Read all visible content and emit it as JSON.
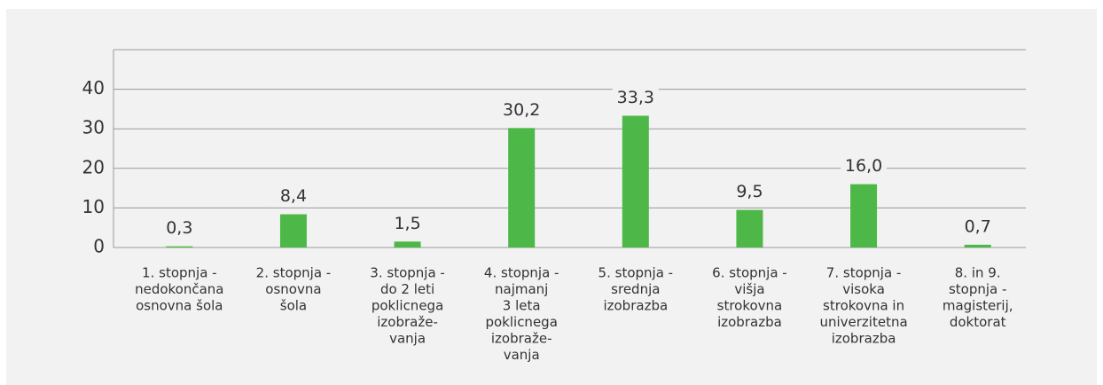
{
  "chart_data": {
    "type": "bar",
    "categories": [
      [
        "1. stopnja -",
        "nedokončana",
        "osnovna šola"
      ],
      [
        "2. stopnja -",
        "osnovna",
        "šola"
      ],
      [
        "3. stopnja -",
        "do 2 leti",
        "poklicnega",
        "izobraže-",
        "vanja"
      ],
      [
        "4. stopnja -",
        "najmanj",
        "3 leta",
        "poklicnega",
        "izobraže-",
        "vanja"
      ],
      [
        "5. stopnja -",
        "srednja",
        "izobrazba"
      ],
      [
        "6. stopnja -",
        "višja",
        "strokovna",
        "izobrazba"
      ],
      [
        "7. stopnja -",
        "visoka",
        "strokovna in",
        "univerzitetna",
        "izobrazba"
      ],
      [
        "8. in 9.",
        "stopnja -",
        "magisterij,",
        "doktorat"
      ]
    ],
    "values": [
      0.3,
      8.4,
      1.5,
      30.2,
      33.3,
      9.5,
      16.0,
      0.7
    ],
    "value_labels": [
      "0,3",
      "8,4",
      "1,5",
      "30,2",
      "33,3",
      "9,5",
      "16,0",
      "0,7"
    ],
    "color": "#4db848",
    "ylim": [
      0,
      50
    ],
    "yticks": [
      0,
      10,
      20,
      30,
      40
    ],
    "grid": true
  }
}
